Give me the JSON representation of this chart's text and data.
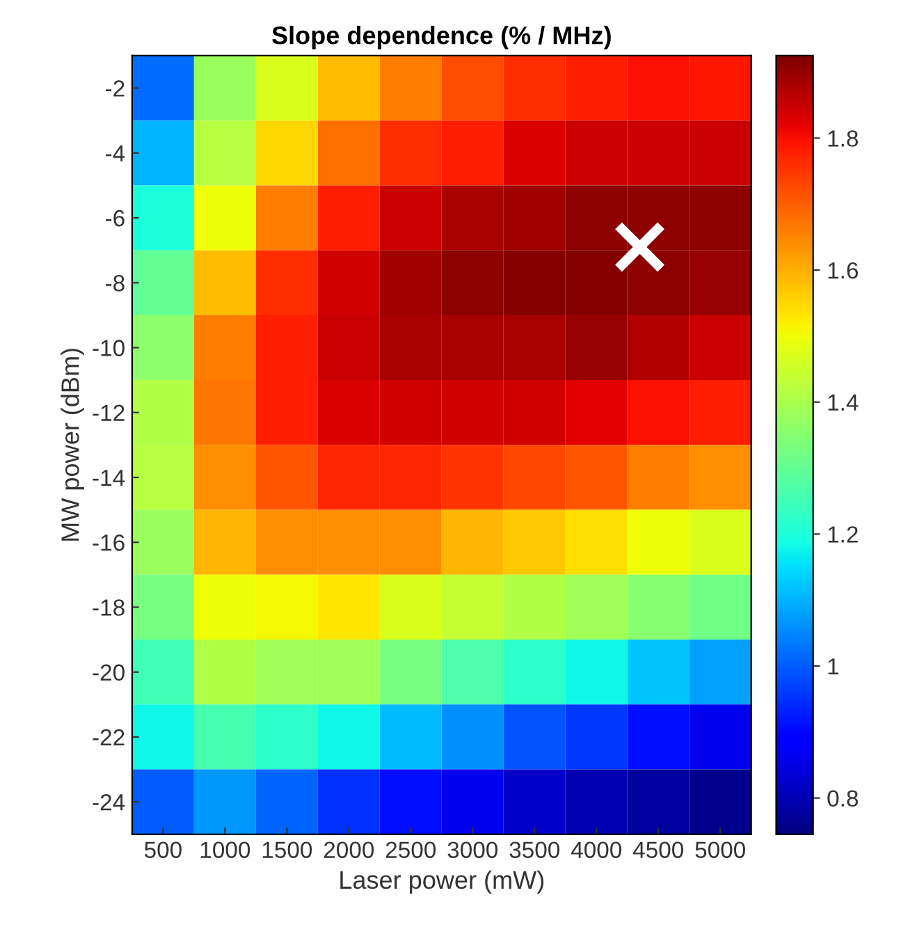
{
  "chart_data": {
    "type": "heatmap",
    "title": "Slope dependence (% / MHz)",
    "xlabel": "Laser power (mW)",
    "ylabel": "MW power (dBm)",
    "x": [
      500,
      1000,
      1500,
      2000,
      2500,
      3000,
      3500,
      4000,
      4500,
      5000
    ],
    "y": [
      -2,
      -4,
      -6,
      -8,
      -10,
      -12,
      -14,
      -16,
      -18,
      -20,
      -22,
      -24
    ],
    "xlim": [
      250,
      5250
    ],
    "xticks": [
      500,
      1000,
      1500,
      2000,
      2500,
      3000,
      3500,
      4000,
      4500,
      5000
    ],
    "ylim": [
      -25,
      -1
    ],
    "yticks": [
      -24,
      -22,
      -20,
      -18,
      -16,
      -14,
      -12,
      -10,
      -8,
      -6,
      -4,
      -2
    ],
    "cells": [
      [
        1.02,
        1.38,
        1.47,
        1.58,
        1.66,
        1.72,
        1.76,
        1.78,
        1.8,
        1.79
      ],
      [
        1.1,
        1.42,
        1.55,
        1.68,
        1.76,
        1.78,
        1.83,
        1.85,
        1.85,
        1.85
      ],
      [
        1.2,
        1.5,
        1.66,
        1.78,
        1.85,
        1.88,
        1.89,
        1.91,
        1.91,
        1.91
      ],
      [
        1.3,
        1.58,
        1.76,
        1.84,
        1.89,
        1.91,
        1.92,
        1.92,
        1.91,
        1.9
      ],
      [
        1.36,
        1.66,
        1.78,
        1.85,
        1.88,
        1.88,
        1.88,
        1.9,
        1.87,
        1.85
      ],
      [
        1.41,
        1.67,
        1.78,
        1.83,
        1.84,
        1.84,
        1.84,
        1.82,
        1.8,
        1.78
      ],
      [
        1.42,
        1.64,
        1.71,
        1.77,
        1.77,
        1.75,
        1.73,
        1.71,
        1.66,
        1.64
      ],
      [
        1.38,
        1.59,
        1.64,
        1.64,
        1.64,
        1.59,
        1.57,
        1.54,
        1.5,
        1.47
      ],
      [
        1.33,
        1.5,
        1.51,
        1.53,
        1.47,
        1.44,
        1.41,
        1.39,
        1.35,
        1.32
      ],
      [
        1.25,
        1.41,
        1.39,
        1.39,
        1.33,
        1.27,
        1.22,
        1.18,
        1.12,
        1.08
      ],
      [
        1.18,
        1.26,
        1.22,
        1.18,
        1.11,
        1.06,
        0.99,
        0.96,
        0.91,
        0.86
      ],
      [
        1.0,
        1.07,
        1.01,
        0.95,
        0.91,
        0.86,
        0.82,
        0.8,
        0.78,
        0.76
      ]
    ],
    "clim": [
      0.745,
      1.925
    ],
    "cticks": [
      0.8,
      1,
      1.2,
      1.4,
      1.6,
      1.8
    ],
    "series": [
      {
        "type": "scatter",
        "x": [
          4350
        ],
        "values": [
          -6.9
        ],
        "color": "#ffffff",
        "marker": "cross"
      }
    ]
  }
}
